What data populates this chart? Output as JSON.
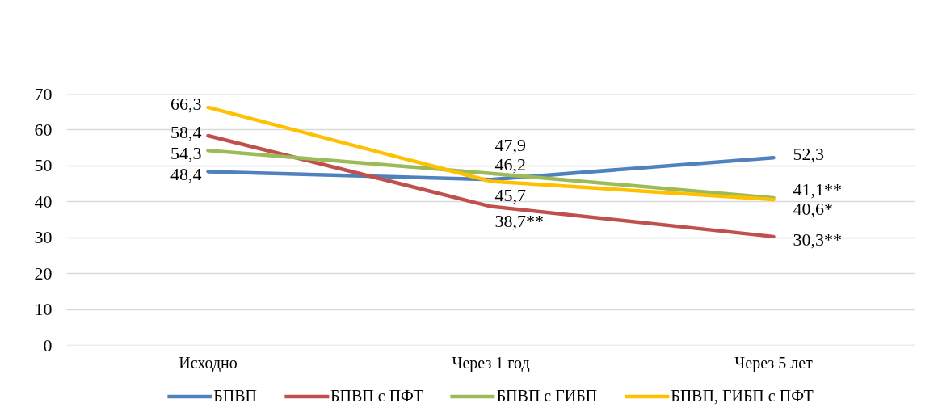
{
  "chart_data": {
    "type": "line",
    "categories": [
      "Исходно",
      "Через 1 год",
      "Через 5 лет"
    ],
    "series": [
      {
        "name": "БПВП",
        "color": "#4f81bd",
        "values": [
          48.4,
          46.2,
          52.3
        ],
        "value_labels": [
          "48,4",
          "46,2",
          "52,3"
        ]
      },
      {
        "name": "БПВП с ПФТ",
        "color": "#c0504d",
        "values": [
          58.4,
          38.7,
          30.3
        ],
        "value_labels": [
          "58,4",
          "38,7**",
          "30,3**"
        ]
      },
      {
        "name": "БПВП с ГИБП",
        "color": "#9bbb59",
        "values": [
          54.3,
          47.9,
          41.1
        ],
        "value_labels": [
          "54,3",
          "47,9",
          "41,1**"
        ]
      },
      {
        "name": "БПВП, ГИБП с ПФТ",
        "color": "#ffc000",
        "values": [
          66.3,
          45.7,
          40.6
        ],
        "value_labels": [
          "66,3",
          "45,7",
          "40,6*"
        ]
      }
    ],
    "ylim": [
      0,
      70
    ],
    "yticks": [
      0,
      10,
      20,
      30,
      40,
      50,
      60,
      70
    ],
    "grid": "y",
    "legend": "bottom",
    "line_style": "solid"
  }
}
